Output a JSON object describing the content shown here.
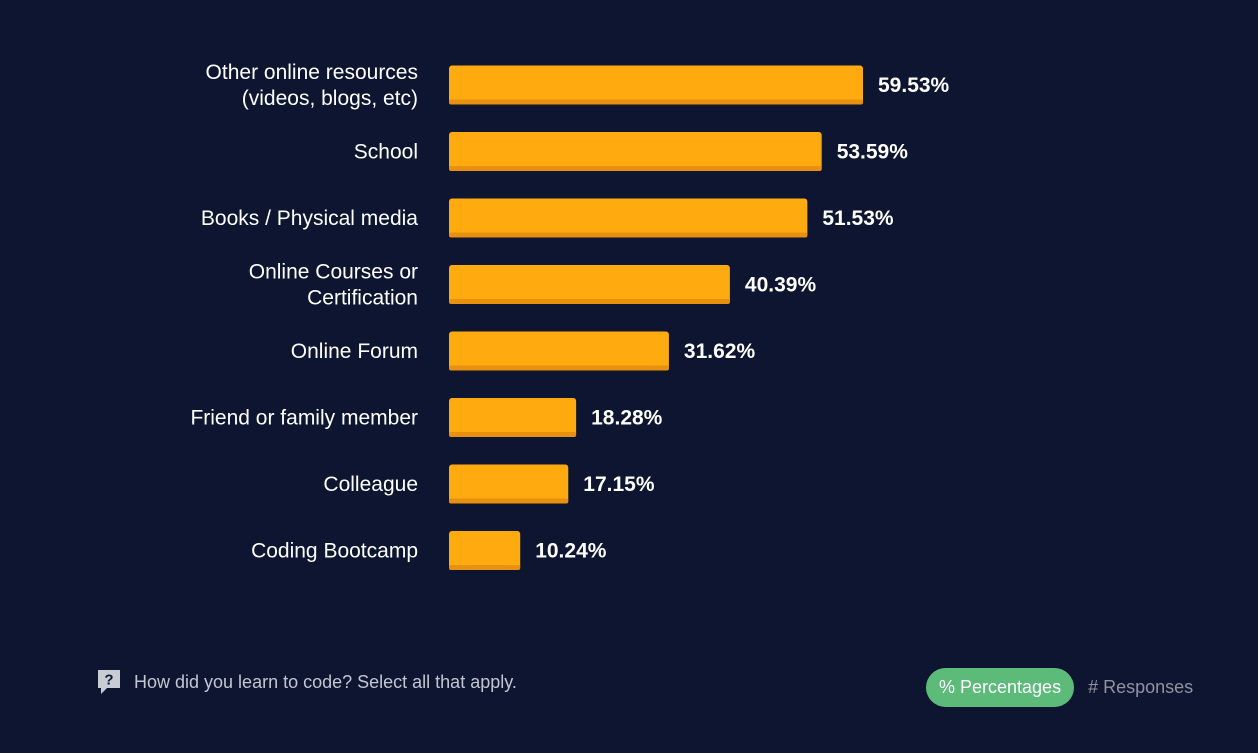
{
  "chart_data": {
    "type": "bar",
    "orientation": "horizontal",
    "categories": [
      [
        "Other online resources",
        "(videos, blogs, etc)"
      ],
      [
        "School"
      ],
      [
        "Books / Physical media"
      ],
      [
        "Online Courses or",
        "Certification"
      ],
      [
        "Online Forum"
      ],
      [
        "Friend or family member"
      ],
      [
        "Colleague"
      ],
      [
        "Coding Bootcamp"
      ]
    ],
    "values": [
      59.53,
      53.59,
      51.53,
      40.39,
      31.62,
      18.28,
      17.15,
      10.24
    ],
    "value_labels": [
      "59.53%",
      "53.59%",
      "51.53%",
      "40.39%",
      "31.62%",
      "18.28%",
      "17.15%",
      "10.24%"
    ],
    "bar_color": "#ffaa0f",
    "bar_shadow_color": "#e8900f",
    "grid": false,
    "legend": "none"
  },
  "footer": {
    "question": "How did you learn to code? Select all that apply.",
    "icon": "question-icon"
  },
  "toggle": {
    "percent_label": "% Percentages",
    "responses_label": "# Responses",
    "active": "percent",
    "active_color": "#5dbb79"
  },
  "colors": {
    "background": "#0d1530",
    "text": "#ffffff"
  }
}
